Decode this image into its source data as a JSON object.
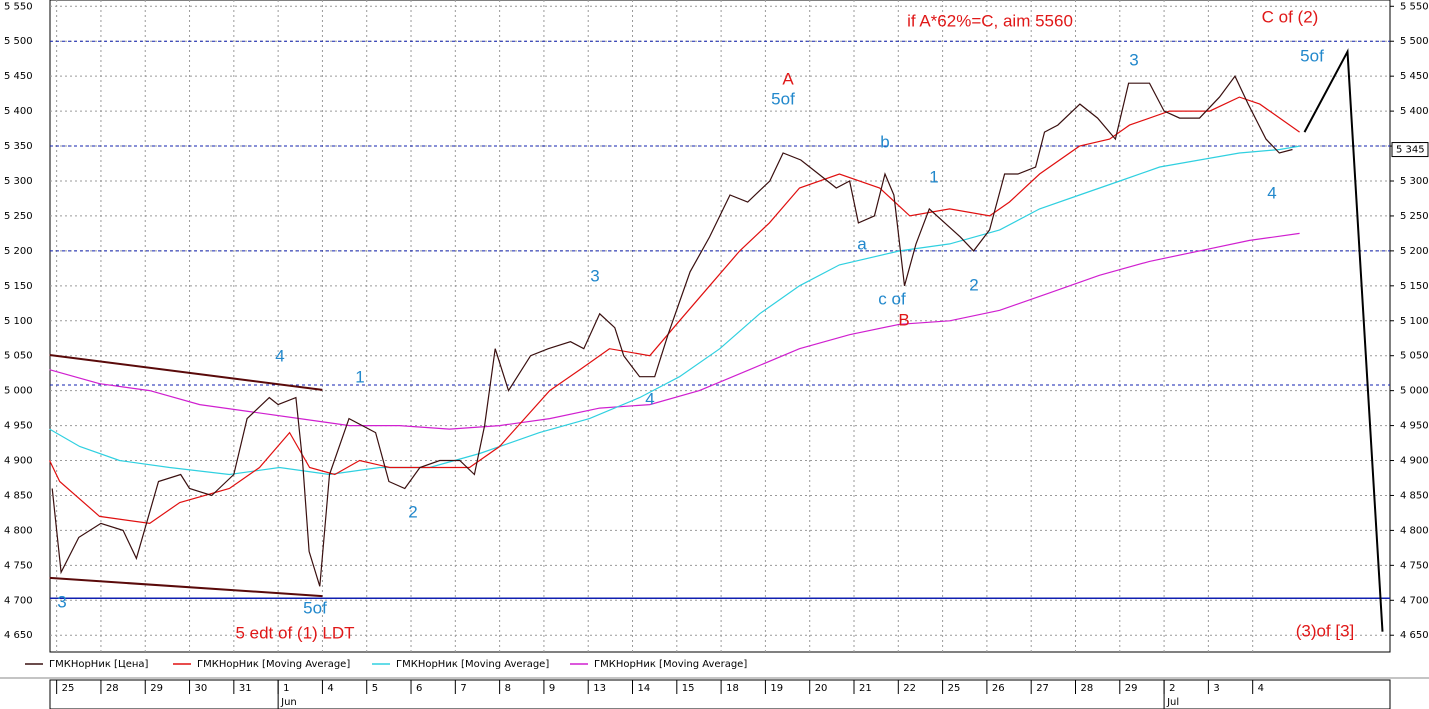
{
  "chart_data": {
    "type": "line",
    "ylim": [
      4626,
      5559
    ],
    "xlim": [
      -0.15,
      30.1
    ],
    "grid": true,
    "yticks": [
      {
        "value": 4650,
        "label": "4 650"
      },
      {
        "value": 4700,
        "label": "4 700"
      },
      {
        "value": 4750,
        "label": "4 750"
      },
      {
        "value": 4800,
        "label": "4 800"
      },
      {
        "value": 4850,
        "label": "4 850"
      },
      {
        "value": 4900,
        "label": "4 900"
      },
      {
        "value": 4950,
        "label": "4 950"
      },
      {
        "value": 5000,
        "label": "5 000"
      },
      {
        "value": 5050,
        "label": "5 050"
      },
      {
        "value": 5100,
        "label": "5 100"
      },
      {
        "value": 5150,
        "label": "5 150"
      },
      {
        "value": 5200,
        "label": "5 200"
      },
      {
        "value": 5250,
        "label": "5 250"
      },
      {
        "value": 5300,
        "label": "5 300"
      },
      {
        "value": 5350,
        "label": "5 350"
      },
      {
        "value": 5400,
        "label": "5 400"
      },
      {
        "value": 5450,
        "label": "5 450"
      },
      {
        "value": 5500,
        "label": "5 500"
      },
      {
        "value": 5550,
        "label": "5 550"
      }
    ],
    "xticks": [
      {
        "value": 0,
        "label": "25"
      },
      {
        "value": 1,
        "label": "28"
      },
      {
        "value": 2,
        "label": "29"
      },
      {
        "value": 3,
        "label": "30"
      },
      {
        "value": 4,
        "label": "31"
      },
      {
        "value": 5,
        "label": "1"
      },
      {
        "value": 6,
        "label": "4"
      },
      {
        "value": 7,
        "label": "5"
      },
      {
        "value": 8,
        "label": "6"
      },
      {
        "value": 9,
        "label": "7"
      },
      {
        "value": 10,
        "label": "8"
      },
      {
        "value": 11,
        "label": "9"
      },
      {
        "value": 12,
        "label": "13"
      },
      {
        "value": 13,
        "label": "14"
      },
      {
        "value": 14,
        "label": "15"
      },
      {
        "value": 15,
        "label": "18"
      },
      {
        "value": 16,
        "label": "19"
      },
      {
        "value": 17,
        "label": "20"
      },
      {
        "value": 18,
        "label": "21"
      },
      {
        "value": 19,
        "label": "22"
      },
      {
        "value": 20,
        "label": "25"
      },
      {
        "value": 21,
        "label": "26"
      },
      {
        "value": 22,
        "label": "27"
      },
      {
        "value": 23,
        "label": "28"
      },
      {
        "value": 24,
        "label": "29"
      },
      {
        "value": 25,
        "label": "2"
      },
      {
        "value": 26,
        "label": "3"
      },
      {
        "value": 27,
        "label": "4"
      }
    ],
    "x_months": [
      {
        "value": 5,
        "label": "Jun"
      },
      {
        "value": 25,
        "label": "Jul"
      }
    ],
    "series": [
      {
        "name": "ГМКНорНик [Цена]",
        "color": "#3a1010",
        "x": [
          -0.1,
          0.1,
          0.5,
          1.0,
          1.5,
          1.8,
          2.3,
          2.8,
          3.0,
          3.5,
          4.0,
          4.3,
          4.8,
          5.0,
          5.4,
          5.55,
          5.7,
          5.94,
          6.16,
          6.6,
          7.2,
          7.5,
          7.86,
          8.2,
          8.65,
          9.1,
          9.43,
          9.66,
          9.9,
          10.2,
          10.7,
          11.1,
          11.6,
          11.9,
          12.26,
          12.6,
          12.8,
          13.16,
          13.5,
          13.8,
          14.3,
          14.74,
          15.2,
          15.6,
          16.1,
          16.4,
          16.8,
          17.2,
          17.6,
          17.9,
          18.1,
          18.46,
          18.7,
          18.9,
          19.14,
          19.4,
          19.7,
          20.05,
          20.4,
          20.7,
          21.06,
          21.4,
          21.7,
          22.1,
          22.3,
          22.6,
          23.1,
          23.5,
          23.9,
          24.2,
          24.67,
          25.0,
          25.35,
          25.8,
          26.25,
          26.6,
          26.9,
          27.3,
          27.6,
          27.9
        ],
        "values": [
          4860,
          4740,
          4790,
          4810,
          4800,
          4760,
          4870,
          4880,
          4860,
          4850,
          4880,
          4960,
          4990,
          4980,
          4990,
          4900,
          4770,
          4720,
          4880,
          4960,
          4940,
          4870,
          4860,
          4890,
          4900,
          4900,
          4880,
          4950,
          5060,
          5000,
          5050,
          5060,
          5070,
          5060,
          5110,
          5090,
          5050,
          5020,
          5020,
          5080,
          5170,
          5220,
          5280,
          5270,
          5300,
          5340,
          5330,
          5310,
          5290,
          5300,
          5240,
          5250,
          5310,
          5280,
          5150,
          5210,
          5260,
          5240,
          5220,
          5200,
          5230,
          5310,
          5310,
          5320,
          5370,
          5380,
          5410,
          5390,
          5360,
          5440,
          5440,
          5400,
          5390,
          5390,
          5420,
          5450,
          5410,
          5360,
          5340,
          5345
        ]
      },
      {
        "name": "ГМКНорНик [Moving Average]",
        "color": "#e01010",
        "x": [
          -0.16,
          0.07,
          0.97,
          2.1,
          2.78,
          3.9,
          4.58,
          5.26,
          5.71,
          6.28,
          6.84,
          7.52,
          8.42,
          9.32,
          10.0,
          11.13,
          11.81,
          12.48,
          13.39,
          14.06,
          14.74,
          15.42,
          16.09,
          16.77,
          17.67,
          18.58,
          19.26,
          20.16,
          21.06,
          21.51,
          22.19,
          23.09,
          23.77,
          24.22,
          25.12,
          26.03,
          26.7,
          27.16,
          28.06
        ],
        "values": [
          4900,
          4870,
          4820,
          4810,
          4840,
          4860,
          4890,
          4940,
          4890,
          4880,
          4900,
          4890,
          4890,
          4890,
          4920,
          5000,
          5030,
          5060,
          5050,
          5100,
          5150,
          5200,
          5240,
          5290,
          5310,
          5290,
          5250,
          5260,
          5250,
          5270,
          5310,
          5350,
          5360,
          5380,
          5400,
          5400,
          5420,
          5410,
          5370
        ]
      },
      {
        "name": "ГМКНорНик [Moving Average]",
        "color": "#30d0e0",
        "x": [
          -0.16,
          0.52,
          1.42,
          2.55,
          3.9,
          5.03,
          6.16,
          7.29,
          8.42,
          9.55,
          10.9,
          12.03,
          13.16,
          14.06,
          14.97,
          15.87,
          16.77,
          17.67,
          19.03,
          20.16,
          21.29,
          22.19,
          23.09,
          24.0,
          24.9,
          25.8,
          26.7,
          27.61,
          28.06
        ],
        "values": [
          4945,
          4920,
          4900,
          4890,
          4880,
          4890,
          4880,
          4890,
          4890,
          4910,
          4940,
          4960,
          4990,
          5020,
          5060,
          5110,
          5150,
          5180,
          5200,
          5210,
          5230,
          5260,
          5280,
          5300,
          5320,
          5330,
          5340,
          5345,
          5350
        ]
      },
      {
        "name": "ГМКНорНик [Moving Average]",
        "color": "#d020d0",
        "x": [
          -0.16,
          0.97,
          2.1,
          3.23,
          4.36,
          5.49,
          6.61,
          7.74,
          8.87,
          10.0,
          11.13,
          12.26,
          13.39,
          14.51,
          15.64,
          16.77,
          17.9,
          19.03,
          20.16,
          21.29,
          22.42,
          23.54,
          24.67,
          25.8,
          26.93,
          28.06
        ],
        "values": [
          5030,
          5010,
          5000,
          4980,
          4970,
          4960,
          4950,
          4950,
          4945,
          4950,
          4960,
          4975,
          4980,
          5000,
          5030,
          5060,
          5080,
          5095,
          5100,
          5115,
          5140,
          5165,
          5185,
          5200,
          5215,
          5225
        ]
      }
    ],
    "projection": {
      "color": "#000000",
      "x": [
        28.17,
        29.14,
        29.93
      ],
      "values": [
        5370,
        5485,
        4655
      ]
    },
    "trendlines": [
      {
        "color": "#5a0a0a",
        "x": [
          -0.16,
          6.0
        ],
        "values": [
          5051,
          5001
        ]
      },
      {
        "color": "#5a0a0a",
        "x": [
          -0.16,
          6.0
        ],
        "values": [
          4732,
          4706
        ]
      }
    ],
    "hlines": [
      {
        "value": 5500,
        "color": "#1020b0",
        "dashed": true
      },
      {
        "value": 5350,
        "color": "#1020b0",
        "dashed": true
      },
      {
        "value": 5200,
        "color": "#1020b0",
        "dashed": true
      },
      {
        "value": 5008,
        "color": "#1020b0",
        "dashed": true
      },
      {
        "value": 4703,
        "color": "#1020b0",
        "dashed": false
      }
    ],
    "last_price": {
      "value": 5345,
      "label": "5 345"
    },
    "annotations": [
      {
        "text": "if A*62%=C, aim 5560",
        "color": "#e01818"
      },
      {
        "text": "C of (2)",
        "color": "#e01818"
      },
      {
        "text": "5of",
        "color": "#2288cc"
      },
      {
        "text": "A",
        "color": "#e01818"
      },
      {
        "text": "5of",
        "color": "#2288cc"
      },
      {
        "text": "3",
        "color": "#2288cc"
      },
      {
        "text": "b",
        "color": "#2288cc"
      },
      {
        "text": "1",
        "color": "#2288cc"
      },
      {
        "text": "4",
        "color": "#2288cc"
      },
      {
        "text": "a",
        "color": "#2288cc"
      },
      {
        "text": "3",
        "color": "#2288cc"
      },
      {
        "text": "c of",
        "color": "#2288cc"
      },
      {
        "text": "B",
        "color": "#e01818"
      },
      {
        "text": "2",
        "color": "#2288cc"
      },
      {
        "text": "4",
        "color": "#2288cc"
      },
      {
        "text": "1",
        "color": "#2288cc"
      },
      {
        "text": "4",
        "color": "#2288cc"
      },
      {
        "text": "2",
        "color": "#2288cc"
      },
      {
        "text": "3",
        "color": "#2288cc"
      },
      {
        "text": "5of",
        "color": "#2288cc"
      },
      {
        "text": "5 edt of (1) LDT",
        "color": "#e01818"
      },
      {
        "text": "(3)of [3]",
        "color": "#e01818"
      }
    ]
  }
}
